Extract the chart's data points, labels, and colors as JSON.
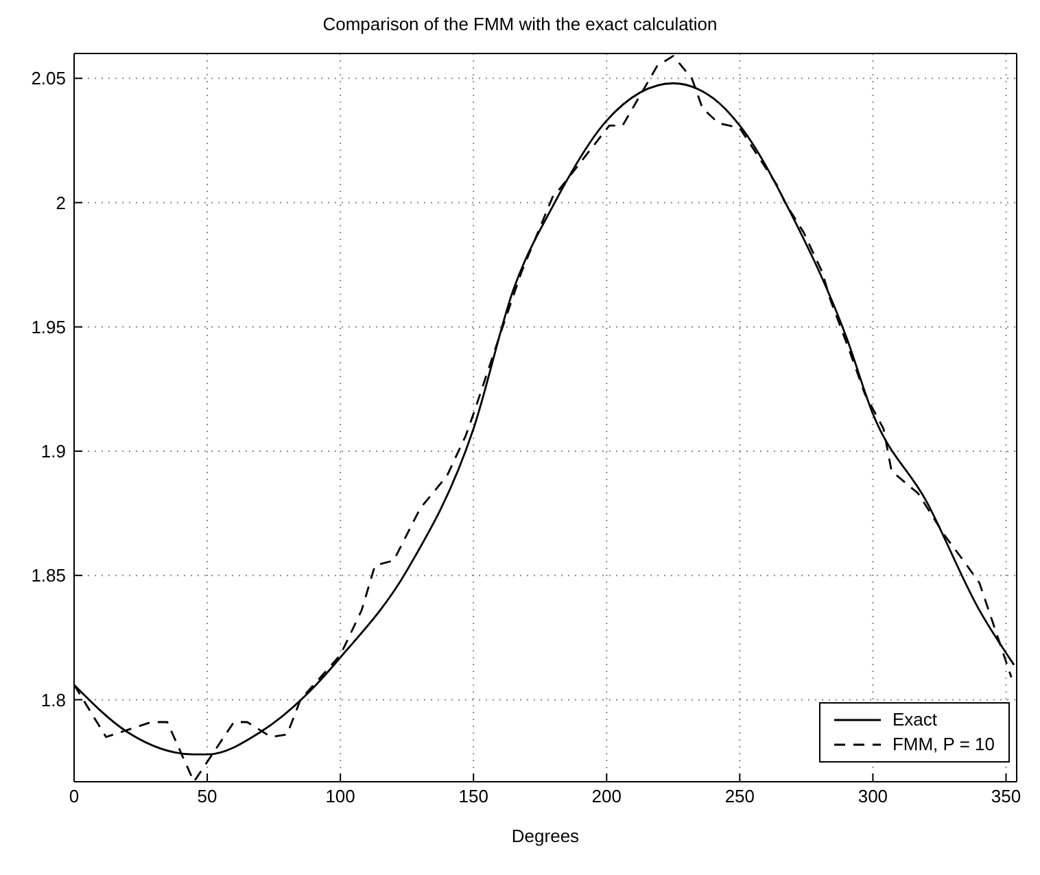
{
  "chart_data": {
    "type": "line",
    "title": "Comparison of the FMM with the exact calculation",
    "xlabel": "Degrees",
    "xlim": [
      0,
      354
    ],
    "xticks": [
      0,
      50,
      100,
      150,
      200,
      250,
      300,
      350
    ],
    "ylim": [
      1.767,
      2.06
    ],
    "yticks": [
      1.8,
      1.85,
      1.9,
      1.95,
      2,
      2.05
    ],
    "grid": true,
    "legend": "bottom right",
    "marker": "none",
    "series": [
      {
        "name": "Exact",
        "color": "#000000",
        "line_style": "solid",
        "x": [
          0,
          20,
          45,
          50,
          70,
          90,
          100,
          125,
          150,
          165,
          180,
          200,
          225,
          240,
          250,
          270,
          290,
          300,
          320,
          340,
          353
        ],
        "values": [
          1.806,
          1.787,
          1.778,
          1.778,
          1.787,
          1.805,
          1.817,
          1.852,
          1.909,
          1.965,
          1.999,
          2.033,
          2.048,
          2.042,
          2.031,
          1.994,
          1.946,
          1.915,
          1.88,
          1.836,
          1.814
        ]
      },
      {
        "name": "FMM, P = 10",
        "color": "#000000",
        "line_style": "dashed",
        "x": [
          0,
          12,
          29,
          35,
          45,
          60,
          65,
          74,
          80,
          85,
          100,
          108,
          113,
          120,
          130,
          140,
          147,
          150,
          160,
          168,
          180,
          182,
          201,
          206,
          219,
          225,
          232,
          236,
          242,
          250,
          264,
          267,
          274,
          281,
          284,
          291,
          297,
          304,
          307,
          317,
          327,
          334,
          340,
          346,
          352
        ],
        "values": [
          1.806,
          1.785,
          1.791,
          1.791,
          1.767,
          1.791,
          1.791,
          1.785,
          1.786,
          1.8,
          1.818,
          1.836,
          1.854,
          1.856,
          1.877,
          1.89,
          1.906,
          1.915,
          1.947,
          1.972,
          2.003,
          2.005,
          2.031,
          2.031,
          2.055,
          2.059,
          2.05,
          2.038,
          2.032,
          2.03,
          2.007,
          2,
          1.988,
          1.972,
          1.961,
          1.941,
          1.923,
          1.909,
          1.892,
          1.883,
          1.866,
          1.856,
          1.847,
          1.828,
          1.809
        ]
      }
    ]
  }
}
